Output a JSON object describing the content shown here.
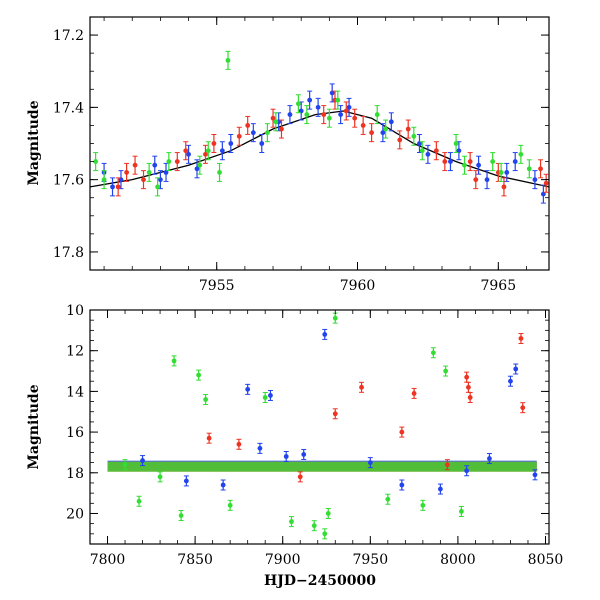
{
  "chart_data": [
    {
      "type": "scatter",
      "panel": "top",
      "title": "",
      "xlabel": "",
      "ylabel": "Magnitude",
      "xlim": [
        7950.5,
        7966.8
      ],
      "ylim": [
        17.85,
        17.15
      ],
      "y_inverted": true,
      "xticks": [
        7955,
        7960,
        7965
      ],
      "xtick_labels": [
        "7955",
        "7960",
        "7965"
      ],
      "yticks": [
        17.2,
        17.4,
        17.6,
        17.8
      ],
      "ytick_labels": [
        "17.2",
        "17.4",
        "17.6",
        "17.8"
      ],
      "grid": false,
      "legend": "none",
      "model_curve": {
        "color": "#000000",
        "x": [
          7950.5,
          7952,
          7954,
          7955.5,
          7957,
          7958.5,
          7959.5,
          7960.5,
          7962,
          7963.5,
          7965,
          7966.8
        ],
        "y": [
          17.62,
          17.6,
          17.56,
          17.52,
          17.46,
          17.42,
          17.41,
          17.43,
          17.5,
          17.55,
          17.59,
          17.62
        ]
      },
      "series": [
        {
          "color": "#2244ee",
          "x": [
            7951.0,
            7951.3,
            7951.6,
            7952.8,
            7953.0,
            7953.2,
            7954.0,
            7954.3,
            7955.2,
            7955.5,
            7956.3,
            7956.6,
            7957.2,
            7957.6,
            7958.0,
            7958.3,
            7958.6,
            7959.1,
            7959.4,
            7959.7,
            7960.9,
            7961.2,
            7962.2,
            7962.5,
            7963.3,
            7963.6,
            7964.3,
            7964.6,
            7965.3,
            7965.6,
            7966.3,
            7966.6
          ],
          "y": [
            17.58,
            17.62,
            17.6,
            17.56,
            17.6,
            17.58,
            17.53,
            17.57,
            17.52,
            17.5,
            17.47,
            17.5,
            17.44,
            17.42,
            17.41,
            17.38,
            17.4,
            17.36,
            17.42,
            17.4,
            17.47,
            17.44,
            17.5,
            17.53,
            17.55,
            17.52,
            17.56,
            17.6,
            17.58,
            17.55,
            17.6,
            17.64
          ]
        },
        {
          "color": "#ee3322",
          "x": [
            7951.5,
            7951.8,
            7952.1,
            7952.4,
            7953.6,
            7953.9,
            7954.6,
            7954.9,
            7955.8,
            7956.1,
            7957.0,
            7957.3,
            7958.8,
            7959.2,
            7959.6,
            7959.9,
            7960.2,
            7960.5,
            7961.5,
            7961.8,
            7962.8,
            7963.1,
            7964.0,
            7964.2,
            7965.0,
            7965.2,
            7966.5,
            7966.7
          ],
          "y": [
            17.62,
            17.58,
            17.56,
            17.6,
            17.55,
            17.52,
            17.53,
            17.5,
            17.48,
            17.45,
            17.43,
            17.46,
            17.42,
            17.38,
            17.41,
            17.43,
            17.45,
            17.47,
            17.49,
            17.46,
            17.52,
            17.55,
            17.55,
            17.6,
            17.58,
            17.62,
            17.57,
            17.61
          ]
        },
        {
          "color": "#33dd33",
          "x": [
            7950.7,
            7951.0,
            7952.6,
            7952.9,
            7953.3,
            7954.4,
            7954.7,
            7955.1,
            7955.4,
            7956.8,
            7957.1,
            7957.9,
            7958.2,
            7959.0,
            7959.3,
            7960.7,
            7961.0,
            7962.0,
            7962.3,
            7963.5,
            7963.8,
            7964.8,
            7965.1,
            7965.8,
            7966.1
          ],
          "y": [
            17.55,
            17.6,
            17.58,
            17.62,
            17.55,
            17.56,
            17.52,
            17.58,
            17.27,
            17.47,
            17.44,
            17.39,
            17.42,
            17.43,
            17.38,
            17.42,
            17.46,
            17.48,
            17.52,
            17.5,
            17.56,
            17.55,
            17.58,
            17.53,
            17.57
          ]
        }
      ]
    },
    {
      "type": "scatter",
      "panel": "bottom",
      "title": "",
      "xlabel": "HJD−2450000",
      "ylabel": "Magnitude",
      "xlim": [
        7790,
        8052
      ],
      "ylim": [
        21.5,
        10
      ],
      "y_inverted": true,
      "xticks": [
        7800,
        7850,
        7900,
        7950,
        8000,
        8050
      ],
      "xtick_labels": [
        "7800",
        "7850",
        "7900",
        "7950",
        "8000",
        "8050"
      ],
      "yticks": [
        10,
        12,
        14,
        16,
        18,
        20
      ],
      "ytick_labels": [
        "10",
        "12",
        "14",
        "16",
        "18",
        "20"
      ],
      "grid": false,
      "legend": "none",
      "series": [
        {
          "color": "#2244ee",
          "x": [
            7820,
            7845,
            7866,
            7880,
            7887,
            7893,
            7902,
            7912,
            7924,
            7950,
            7968,
            7990,
            8005,
            8018,
            8030,
            8033,
            8044
          ],
          "y": [
            17.4,
            18.4,
            18.6,
            13.9,
            16.8,
            14.2,
            17.2,
            17.1,
            11.2,
            17.5,
            18.6,
            18.8,
            17.9,
            17.3,
            13.5,
            12.9,
            18.1
          ],
          "band": {
            "x": [
              7800,
              8045
            ],
            "y": 17.65
          }
        },
        {
          "color": "#ee3322",
          "x": [
            7858,
            7875,
            7910,
            7930,
            7945,
            7968,
            7975,
            7994,
            8005,
            8006,
            8007,
            8036,
            8037
          ],
          "y": [
            16.3,
            16.6,
            18.2,
            15.1,
            13.8,
            16.0,
            14.1,
            17.6,
            13.3,
            13.8,
            14.3,
            11.4,
            14.8
          ],
          "band": {
            "x": [
              7800,
              8045
            ],
            "y": 17.7
          }
        },
        {
          "color": "#33dd33",
          "x": [
            7810,
            7818,
            7830,
            7838,
            7842,
            7852,
            7856,
            7870,
            7890,
            7905,
            7918,
            7924,
            7926,
            7930,
            7960,
            7980,
            7986,
            7993,
            8002
          ],
          "y": [
            17.6,
            19.4,
            18.2,
            12.5,
            20.1,
            13.2,
            14.4,
            19.6,
            14.3,
            20.4,
            20.6,
            21.0,
            20.0,
            10.4,
            19.3,
            19.6,
            12.1,
            13.0,
            19.9
          ],
          "band": {
            "x": [
              7800,
              8045
            ],
            "y": 17.7
          }
        }
      ]
    }
  ]
}
